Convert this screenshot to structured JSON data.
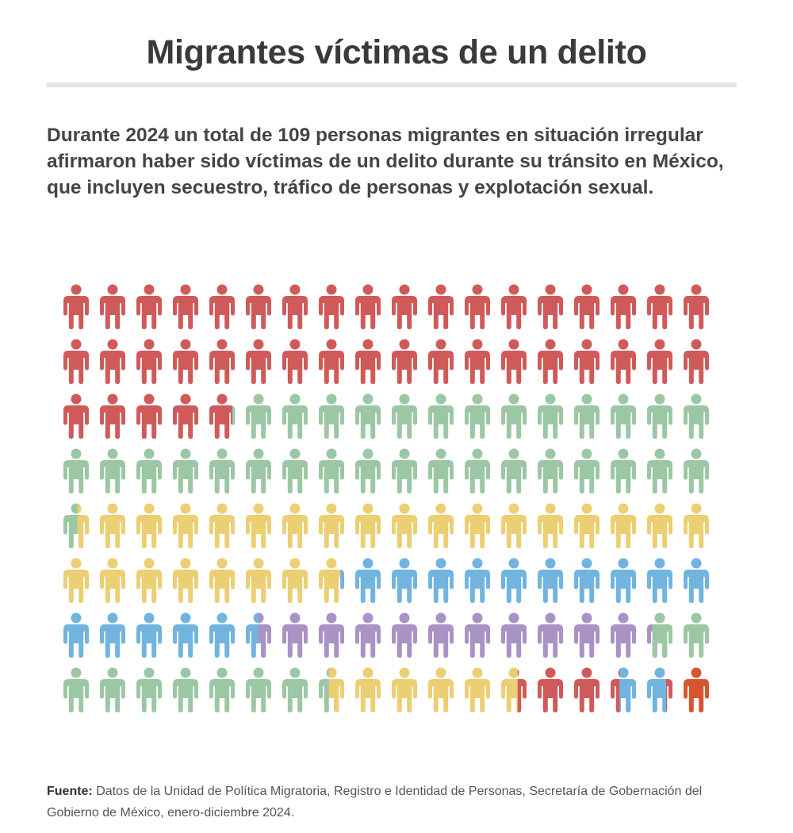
{
  "title": "Migrantes víctimas de un delito",
  "description": "Durante 2024 un total de 109 personas migrantes en situación irregular afirmaron haber sido víctimas de un delito durante su tránsito en México, que incluyen secuestro, tráfico de personas y explotación sexual.",
  "source": {
    "label": "Fuente:",
    "text": " Datos de la Unidad de Política Migratoria, Registro e Identidad de Personas, Secretaría de Gobernación del Gobierno de México, enero-diciembre 2024."
  },
  "chart_data": {
    "type": "pictogram",
    "icon": "person-icon",
    "columns": 18,
    "rows": 8,
    "rows_data": [
      [
        [
          "red"
        ],
        [
          "red"
        ],
        [
          "red"
        ],
        [
          "red"
        ],
        [
          "red"
        ],
        [
          "red"
        ],
        [
          "red"
        ],
        [
          "red"
        ],
        [
          "red"
        ],
        [
          "red"
        ],
        [
          "red"
        ],
        [
          "red"
        ],
        [
          "red"
        ],
        [
          "red"
        ],
        [
          "red"
        ],
        [
          "red"
        ],
        [
          "red"
        ],
        [
          "red"
        ]
      ],
      [
        [
          "red"
        ],
        [
          "red"
        ],
        [
          "red"
        ],
        [
          "red"
        ],
        [
          "red"
        ],
        [
          "red"
        ],
        [
          "red"
        ],
        [
          "red"
        ],
        [
          "red"
        ],
        [
          "red"
        ],
        [
          "red"
        ],
        [
          "red"
        ],
        [
          "red"
        ],
        [
          "red"
        ],
        [
          "red"
        ],
        [
          "red"
        ],
        [
          "red"
        ],
        [
          "red"
        ]
      ],
      [
        [
          "red"
        ],
        [
          "red"
        ],
        [
          "red"
        ],
        [
          "red"
        ],
        [
          "red",
          0.9,
          "green"
        ],
        [
          "green"
        ],
        [
          "green"
        ],
        [
          "green"
        ],
        [
          "green"
        ],
        [
          "green"
        ],
        [
          "green"
        ],
        [
          "green"
        ],
        [
          "green"
        ],
        [
          "green"
        ],
        [
          "green"
        ],
        [
          "green"
        ],
        [
          "green"
        ],
        [
          "green"
        ]
      ],
      [
        [
          "green"
        ],
        [
          "green"
        ],
        [
          "green"
        ],
        [
          "green"
        ],
        [
          "green"
        ],
        [
          "green"
        ],
        [
          "green"
        ],
        [
          "green"
        ],
        [
          "green"
        ],
        [
          "green"
        ],
        [
          "green"
        ],
        [
          "green"
        ],
        [
          "green"
        ],
        [
          "green"
        ],
        [
          "green"
        ],
        [
          "green"
        ],
        [
          "green"
        ],
        [
          "green"
        ]
      ],
      [
        [
          "green",
          0.55,
          "yellow"
        ],
        [
          "yellow"
        ],
        [
          "yellow"
        ],
        [
          "yellow"
        ],
        [
          "yellow"
        ],
        [
          "yellow"
        ],
        [
          "yellow"
        ],
        [
          "yellow"
        ],
        [
          "yellow"
        ],
        [
          "yellow"
        ],
        [
          "yellow"
        ],
        [
          "yellow"
        ],
        [
          "yellow"
        ],
        [
          "yellow"
        ],
        [
          "yellow"
        ],
        [
          "yellow"
        ],
        [
          "yellow"
        ],
        [
          "yellow"
        ]
      ],
      [
        [
          "yellow"
        ],
        [
          "yellow"
        ],
        [
          "yellow"
        ],
        [
          "yellow"
        ],
        [
          "yellow"
        ],
        [
          "yellow"
        ],
        [
          "yellow"
        ],
        [
          "yellow",
          0.85,
          "blue"
        ],
        [
          "blue"
        ],
        [
          "blue"
        ],
        [
          "blue"
        ],
        [
          "blue"
        ],
        [
          "blue"
        ],
        [
          "blue"
        ],
        [
          "blue"
        ],
        [
          "blue"
        ],
        [
          "blue"
        ],
        [
          "blue"
        ]
      ],
      [
        [
          "blue"
        ],
        [
          "blue"
        ],
        [
          "blue"
        ],
        [
          "blue"
        ],
        [
          "blue"
        ],
        [
          "blue",
          0.5,
          "purple"
        ],
        [
          "purple"
        ],
        [
          "purple"
        ],
        [
          "purple"
        ],
        [
          "purple"
        ],
        [
          "purple"
        ],
        [
          "purple"
        ],
        [
          "purple"
        ],
        [
          "purple"
        ],
        [
          "purple"
        ],
        [
          "purple"
        ],
        [
          "purple",
          0.2,
          "green"
        ],
        [
          "green"
        ]
      ],
      [
        [
          "green"
        ],
        [
          "green"
        ],
        [
          "green"
        ],
        [
          "green"
        ],
        [
          "green"
        ],
        [
          "green"
        ],
        [
          "green"
        ],
        [
          "green",
          0.4,
          "yellow"
        ],
        [
          "yellow"
        ],
        [
          "yellow"
        ],
        [
          "yellow"
        ],
        [
          "yellow"
        ],
        [
          "yellow",
          0.65,
          "red"
        ],
        [
          "red"
        ],
        [
          "red"
        ],
        [
          "red",
          0.35,
          "blue"
        ],
        [
          "blue",
          0.75,
          "red"
        ],
        [
          "orange"
        ]
      ]
    ],
    "colors": {
      "red": "#d05a5a",
      "green": "#9cc7a4",
      "yellow": "#ecce73",
      "blue": "#71b4e0",
      "purple": "#a992c4",
      "orange": "#d7552f"
    }
  }
}
